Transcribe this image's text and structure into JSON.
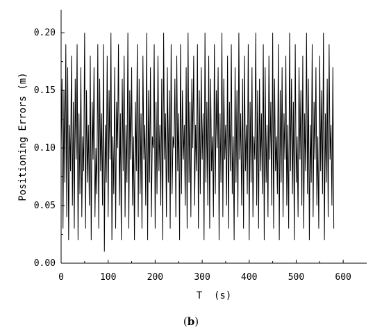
{
  "chart_data": {
    "type": "line",
    "xlabel": "T  (s)",
    "ylabel": "Positioning Errors (m)",
    "caption_open": "(",
    "caption_label": "b",
    "caption_close": ")",
    "xlim": [
      0,
      650
    ],
    "ylim": [
      0.0,
      0.22
    ],
    "x_ticks": [
      0,
      100,
      200,
      300,
      400,
      500,
      600
    ],
    "x_tick_labels": [
      "0",
      "100",
      "200",
      "300",
      "400",
      "500",
      "600"
    ],
    "y_ticks": [
      0.0,
      0.05,
      0.1,
      0.15,
      0.2
    ],
    "y_tick_labels": [
      "0.00",
      "0.05",
      "0.10",
      "0.15",
      "0.20"
    ],
    "grid": false,
    "legend": "none",
    "line_color": "#000000",
    "series": [
      {
        "x_start": 0,
        "x_step": 2,
        "y": [
          0.1,
          0.16,
          0.03,
          0.15,
          0.07,
          0.19,
          0.04,
          0.17,
          0.02,
          0.12,
          0.08,
          0.18,
          0.05,
          0.14,
          0.03,
          0.16,
          0.09,
          0.19,
          0.02,
          0.13,
          0.06,
          0.17,
          0.04,
          0.11,
          0.08,
          0.2,
          0.03,
          0.15,
          0.07,
          0.12,
          0.05,
          0.18,
          0.02,
          0.14,
          0.09,
          0.17,
          0.04,
          0.1,
          0.06,
          0.19,
          0.03,
          0.16,
          0.08,
          0.13,
          0.05,
          0.19,
          0.01,
          0.12,
          0.07,
          0.18,
          0.04,
          0.15,
          0.09,
          0.2,
          0.02,
          0.11,
          0.06,
          0.17,
          0.03,
          0.14,
          0.1,
          0.19,
          0.05,
          0.13,
          0.02,
          0.16,
          0.08,
          0.18,
          0.04,
          0.12,
          0.07,
          0.2,
          0.03,
          0.15,
          0.09,
          0.17,
          0.05,
          0.11,
          0.02,
          0.14,
          0.08,
          0.19,
          0.04,
          0.16,
          0.06,
          0.13,
          0.03,
          0.18,
          0.09,
          0.12,
          0.05,
          0.2,
          0.02,
          0.15,
          0.07,
          0.17,
          0.04,
          0.11,
          0.1,
          0.19,
          0.03,
          0.14,
          0.06,
          0.18,
          0.08,
          0.12,
          0.05,
          0.16,
          0.02,
          0.2,
          0.09,
          0.13,
          0.04,
          0.17,
          0.07,
          0.15,
          0.03,
          0.19,
          0.06,
          0.11,
          0.1,
          0.16,
          0.04,
          0.18,
          0.08,
          0.13,
          0.02,
          0.19,
          0.06,
          0.15,
          0.09,
          0.12,
          0.05,
          0.17,
          0.03,
          0.2,
          0.07,
          0.14,
          0.04,
          0.16,
          0.1,
          0.18,
          0.05,
          0.12,
          0.08,
          0.19,
          0.03,
          0.15,
          0.06,
          0.17,
          0.09,
          0.13,
          0.02,
          0.2,
          0.07,
          0.14,
          0.05,
          0.18,
          0.03,
          0.16,
          0.08,
          0.11,
          0.04,
          0.19,
          0.06,
          0.15,
          0.1,
          0.17,
          0.02,
          0.13,
          0.07,
          0.2,
          0.04,
          0.16,
          0.09,
          0.12,
          0.05,
          0.18,
          0.03,
          0.14,
          0.08,
          0.19,
          0.06,
          0.11,
          0.02,
          0.17,
          0.07,
          0.15,
          0.04,
          0.2,
          0.09,
          0.13,
          0.05,
          0.16,
          0.03,
          0.18,
          0.08,
          0.12,
          0.06,
          0.19,
          0.02,
          0.14,
          0.07,
          0.17,
          0.04,
          0.11,
          0.09,
          0.2,
          0.05,
          0.15,
          0.03,
          0.16,
          0.08,
          0.13,
          0.06,
          0.19,
          0.02,
          0.17,
          0.07,
          0.12,
          0.04,
          0.18,
          0.09,
          0.14,
          0.05,
          0.2,
          0.03,
          0.16,
          0.08,
          0.11,
          0.06,
          0.19,
          0.02,
          0.15,
          0.07,
          0.17,
          0.04,
          0.13,
          0.09,
          0.18,
          0.05,
          0.12,
          0.03,
          0.2,
          0.08,
          0.16,
          0.06,
          0.14,
          0.02,
          0.19,
          0.07,
          0.11,
          0.04,
          0.17,
          0.09,
          0.15,
          0.05,
          0.18,
          0.03,
          0.13,
          0.08,
          0.2,
          0.06,
          0.16,
          0.02,
          0.12,
          0.07,
          0.19,
          0.04,
          0.14,
          0.09,
          0.17,
          0.05,
          0.11,
          0.03,
          0.18,
          0.08,
          0.15,
          0.06,
          0.2,
          0.02,
          0.13,
          0.07,
          0.16,
          0.04,
          0.19,
          0.09,
          0.12,
          0.05,
          0.17,
          0.03
        ]
      }
    ]
  }
}
